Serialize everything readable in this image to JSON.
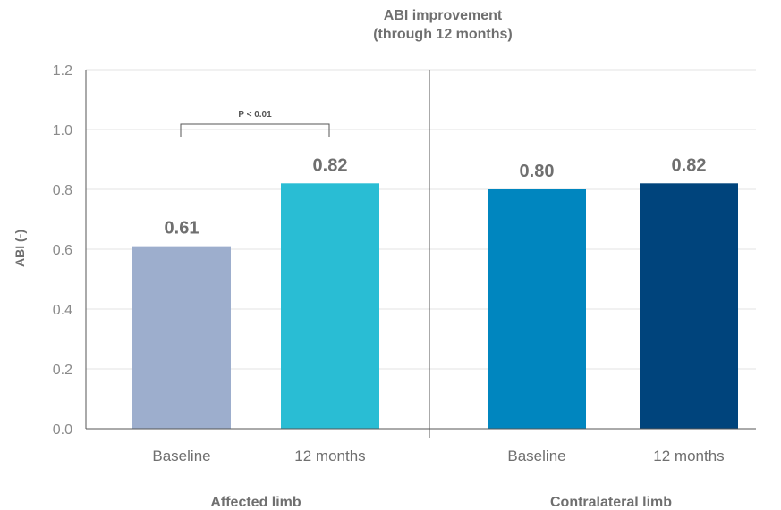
{
  "chart_data": {
    "type": "bar",
    "title_lines": [
      "ABI improvement",
      "(through 12 months)"
    ],
    "ylabel": "ABI (-)",
    "ylim": [
      0,
      1.2
    ],
    "yticks": [
      "0.0",
      "0.2",
      "0.4",
      "0.6",
      "0.8",
      "1.0",
      "1.2"
    ],
    "grid": true,
    "groups": [
      {
        "label": "Affected limb",
        "bars": [
          {
            "category": "Baseline",
            "value": 0.61,
            "label": "0.61",
            "color": "#9daecd"
          },
          {
            "category": "12 months",
            "value": 0.82,
            "label": "0.82",
            "color": "#29bdd4"
          }
        ],
        "annotation": "P < 0.01"
      },
      {
        "label": "Contralateral limb",
        "bars": [
          {
            "category": "Baseline",
            "value": 0.8,
            "label": "0.80",
            "color": "#0086bf"
          },
          {
            "category": "12 months",
            "value": 0.82,
            "label": "0.82",
            "color": "#00447c"
          }
        ]
      }
    ]
  }
}
